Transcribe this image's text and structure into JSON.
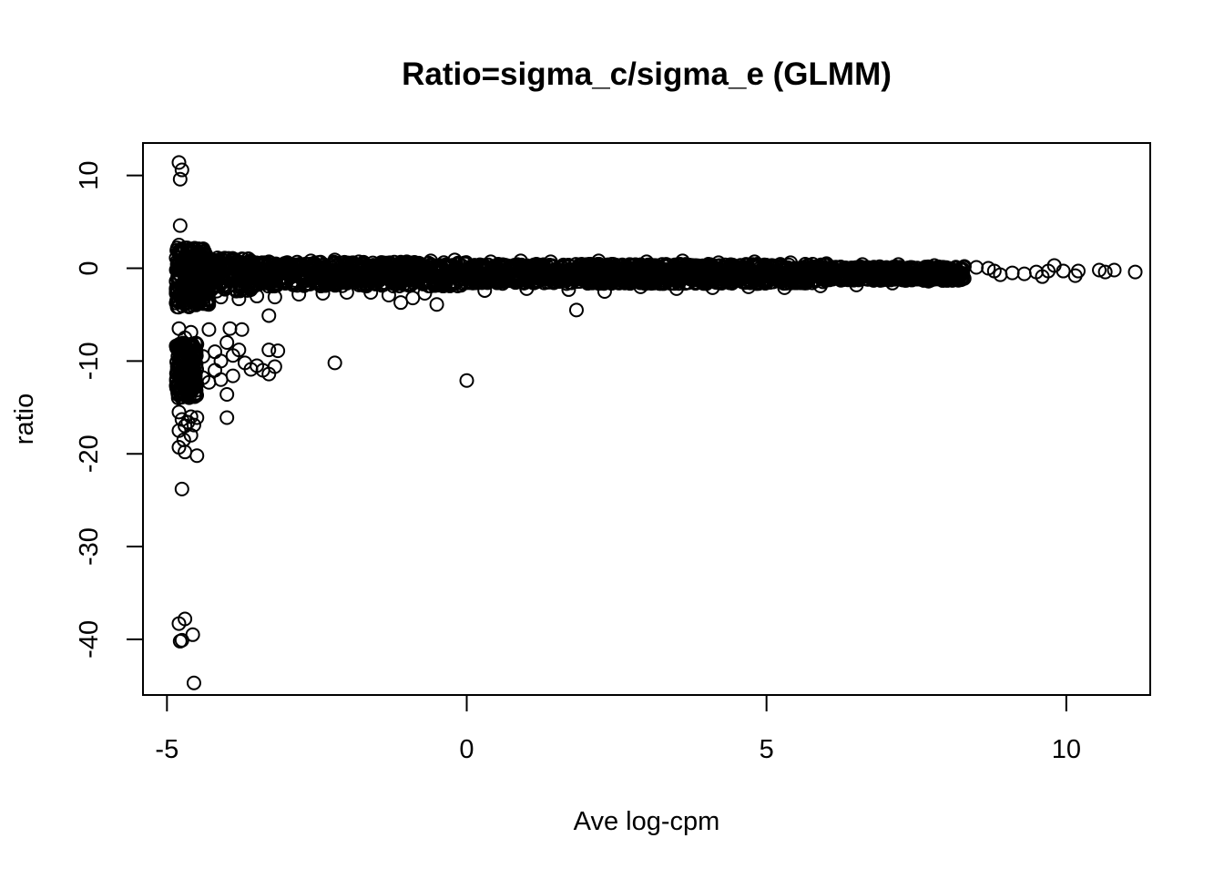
{
  "chart_data": {
    "type": "scatter",
    "title": "Ratio=sigma_c/sigma_e (GLMM)",
    "xlabel": "Ave log-cpm",
    "ylabel": "ratio",
    "xlim": [
      -5.4,
      11.4
    ],
    "ylim": [
      -46,
      13.5
    ],
    "x_ticks": [
      -5,
      0,
      5,
      10
    ],
    "x_tick_labels": [
      "-5",
      "0",
      "5",
      "10"
    ],
    "y_ticks": [
      10,
      0,
      -10,
      -20,
      -30,
      -40
    ],
    "y_tick_labels": [
      "10",
      "0",
      "-10",
      "-20",
      "-30",
      "-40"
    ],
    "grid": false,
    "legend": "none",
    "marker": "open-circle",
    "color": "#000000",
    "dense_band": {
      "x_range": [
        -4.6,
        8.3
      ],
      "y_center": -0.5,
      "description": "thousands of points"
    },
    "points": [
      [
        -4.8,
        11.4
      ],
      [
        -4.75,
        10.6
      ],
      [
        -4.78,
        9.6
      ],
      [
        -4.78,
        4.6
      ],
      [
        -4.8,
        2.5
      ],
      [
        -4.7,
        2.2
      ],
      [
        -4.6,
        1.8
      ],
      [
        -4.5,
        1.5
      ],
      [
        -4.4,
        1.6
      ],
      [
        -4.3,
        0.9
      ],
      [
        -4.1,
        1.0
      ],
      [
        -3.9,
        0.8
      ],
      [
        -3.6,
        0.7
      ],
      [
        -3.3,
        0.7
      ],
      [
        -3.0,
        0.6
      ],
      [
        -2.6,
        0.8
      ],
      [
        -2.2,
        0.9
      ],
      [
        -1.8,
        0.7
      ],
      [
        -1.4,
        0.6
      ],
      [
        -1.0,
        0.7
      ],
      [
        -0.6,
        0.8
      ],
      [
        -0.2,
        0.9
      ],
      [
        0.4,
        0.7
      ],
      [
        0.9,
        0.8
      ],
      [
        1.4,
        0.7
      ],
      [
        2.2,
        0.8
      ],
      [
        3.0,
        0.7
      ],
      [
        3.6,
        0.8
      ],
      [
        4.2,
        0.6
      ],
      [
        4.8,
        0.7
      ],
      [
        5.4,
        0.6
      ],
      [
        6.0,
        0.5
      ],
      [
        6.6,
        0.4
      ],
      [
        7.2,
        0.4
      ],
      [
        7.8,
        0.3
      ],
      [
        8.3,
        0.2
      ],
      [
        8.5,
        0.1
      ],
      [
        8.7,
        0.0
      ],
      [
        8.8,
        -0.3
      ],
      [
        8.9,
        -0.7
      ],
      [
        9.1,
        -0.5
      ],
      [
        9.3,
        -0.6
      ],
      [
        9.5,
        -0.4
      ],
      [
        9.6,
        -0.9
      ],
      [
        9.7,
        -0.3
      ],
      [
        9.8,
        0.3
      ],
      [
        9.95,
        -0.3
      ],
      [
        10.15,
        -0.8
      ],
      [
        10.2,
        -0.3
      ],
      [
        10.55,
        -0.2
      ],
      [
        10.65,
        -0.4
      ],
      [
        10.8,
        -0.2
      ],
      [
        11.15,
        -0.4
      ],
      [
        -4.5,
        -3.0
      ],
      [
        -4.3,
        -3.4
      ],
      [
        -4.1,
        -3.1
      ],
      [
        -3.8,
        -3.3
      ],
      [
        -3.5,
        -3.0
      ],
      [
        -3.2,
        -3.1
      ],
      [
        -2.8,
        -2.8
      ],
      [
        -2.4,
        -2.7
      ],
      [
        -2.0,
        -2.6
      ],
      [
        -1.6,
        -2.6
      ],
      [
        -1.3,
        -2.9
      ],
      [
        -1.1,
        -3.7
      ],
      [
        -0.9,
        -3.2
      ],
      [
        -0.7,
        -2.7
      ],
      [
        -0.5,
        -3.9
      ],
      [
        0.3,
        -2.4
      ],
      [
        1.0,
        -2.2
      ],
      [
        1.7,
        -2.3
      ],
      [
        2.3,
        -2.5
      ],
      [
        2.9,
        -2.0
      ],
      [
        3.5,
        -2.2
      ],
      [
        4.1,
        -2.1
      ],
      [
        4.7,
        -2.0
      ],
      [
        5.3,
        -2.1
      ],
      [
        5.9,
        -1.9
      ],
      [
        6.5,
        -1.8
      ],
      [
        7.1,
        -1.6
      ],
      [
        7.7,
        -1.4
      ],
      [
        8.2,
        -1.3
      ],
      [
        1.83,
        -4.5
      ],
      [
        -3.3,
        -5.1
      ],
      [
        -4.8,
        -6.5
      ],
      [
        -4.7,
        -7.5
      ],
      [
        -4.6,
        -6.9
      ],
      [
        -4.5,
        -8.2
      ],
      [
        -4.4,
        -9.5
      ],
      [
        -4.3,
        -6.6
      ],
      [
        -4.2,
        -9.0
      ],
      [
        -4.1,
        -10.0
      ],
      [
        -4.0,
        -8.0
      ],
      [
        -3.95,
        -6.5
      ],
      [
        -3.9,
        -9.4
      ],
      [
        -3.8,
        -8.8
      ],
      [
        -3.75,
        -6.6
      ],
      [
        -3.7,
        -10.2
      ],
      [
        -3.6,
        -10.9
      ],
      [
        -3.5,
        -10.5
      ],
      [
        -3.4,
        -11.0
      ],
      [
        -3.3,
        -11.4
      ],
      [
        -3.2,
        -10.6
      ],
      [
        -3.15,
        -8.9
      ],
      [
        -3.3,
        -8.8
      ],
      [
        -4.8,
        -10.5
      ],
      [
        -4.7,
        -11.2
      ],
      [
        -4.6,
        -12.0
      ],
      [
        -4.5,
        -12.5
      ],
      [
        -4.4,
        -11.8
      ],
      [
        -4.3,
        -12.3
      ],
      [
        -4.2,
        -11.0
      ],
      [
        -4.1,
        -12.0
      ],
      [
        -4.0,
        -13.6
      ],
      [
        -3.9,
        -11.6
      ],
      [
        -4.8,
        -13.0
      ],
      [
        -4.75,
        -12.5
      ],
      [
        -4.7,
        -13.5
      ],
      [
        -2.2,
        -10.2
      ],
      [
        0.0,
        -12.1
      ],
      [
        -4.8,
        -15.5
      ],
      [
        -4.75,
        -16.3
      ],
      [
        -4.7,
        -17.0
      ],
      [
        -4.65,
        -16.6
      ],
      [
        -4.6,
        -16.0
      ],
      [
        -4.55,
        -16.9
      ],
      [
        -4.5,
        -16.1
      ],
      [
        -4.8,
        -17.5
      ],
      [
        -4.72,
        -18.5
      ],
      [
        -4.6,
        -18.0
      ],
      [
        -4.0,
        -16.1
      ],
      [
        -4.8,
        -19.3
      ],
      [
        -4.7,
        -19.8
      ],
      [
        -4.5,
        -20.2
      ],
      [
        -4.75,
        -23.8
      ],
      [
        -4.8,
        -38.3
      ],
      [
        -4.7,
        -37.8
      ],
      [
        -4.78,
        -40.2
      ],
      [
        -4.75,
        -40.1
      ],
      [
        -4.57,
        -39.5
      ],
      [
        -4.55,
        -44.7
      ]
    ]
  }
}
